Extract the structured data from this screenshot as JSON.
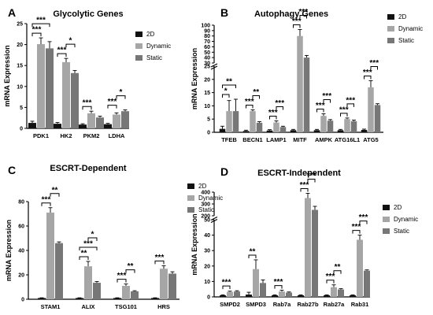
{
  "chart_data": [
    {
      "panel": "A",
      "type": "bar",
      "title": "Glycolytic Genes",
      "ylabel": "mRNA Expression",
      "ylim": [
        0,
        25
      ],
      "yticks": [
        "0",
        "5",
        "10",
        "15",
        "20",
        "25"
      ],
      "categories": [
        "PDK1",
        "HK2",
        "PKM2",
        "LDHA"
      ],
      "series": [
        {
          "name": "2D",
          "values": [
            1.3,
            1.1,
            0.9,
            1.0
          ],
          "errors": [
            0.4,
            0.3,
            0.2,
            0.2
          ]
        },
        {
          "name": "Dynamic",
          "values": [
            20.1,
            15.8,
            3.6,
            3.3
          ],
          "errors": [
            1.5,
            0.9,
            0.5,
            0.4
          ]
        },
        {
          "name": "Static",
          "values": [
            19.1,
            13.2,
            2.6,
            4.1
          ],
          "errors": [
            1.6,
            0.6,
            0.3,
            0.3
          ]
        }
      ],
      "significance": [
        {
          "category": "PDK1",
          "pair": "2D-Dynamic",
          "label": "***"
        },
        {
          "category": "PDK1",
          "pair": "2D-Static",
          "label": "***"
        },
        {
          "category": "HK2",
          "pair": "2D-Dynamic",
          "label": "***"
        },
        {
          "category": "HK2",
          "pair": "Dynamic-Static",
          "label": "*"
        },
        {
          "category": "PKM2",
          "pair": "2D-Dynamic",
          "label": "***"
        },
        {
          "category": "LDHA",
          "pair": "2D-Dynamic",
          "label": "***"
        },
        {
          "category": "LDHA",
          "pair": "Dynamic-Static",
          "label": "*"
        }
      ]
    },
    {
      "panel": "B",
      "type": "bar",
      "title": "Autophagy Genes",
      "ylabel": "mRNA Expression",
      "broken_axis": true,
      "ylim_lower": [
        0,
        25
      ],
      "ylim_upper": [
        30,
        100
      ],
      "yticks": [
        "0",
        "5",
        "10",
        "15",
        "20",
        "25",
        "30",
        "40",
        "50",
        "60",
        "70",
        "80",
        "90",
        "100"
      ],
      "categories": [
        "TFEB",
        "BECN1",
        "LAMP1",
        "MITF",
        "AMPK",
        "ATG16L1",
        "ATG5"
      ],
      "series": [
        {
          "name": "2D",
          "values": [
            1.3,
            0.5,
            0.7,
            0.8,
            0.8,
            0.8,
            0.9
          ],
          "errors": [
            1.0,
            0.3,
            0.3,
            0.3,
            0.3,
            0.3,
            0.3
          ]
        },
        {
          "name": "Dynamic",
          "values": [
            8.0,
            8.0,
            3.7,
            80,
            6.2,
            5.0,
            17.0
          ],
          "errors": [
            4.0,
            0.5,
            0.6,
            12,
            0.8,
            0.4,
            2.5
          ]
        },
        {
          "name": "Static",
          "values": [
            8.0,
            3.6,
            2.0,
            40,
            4.4,
            4.2,
            10.3
          ],
          "errors": [
            4.5,
            0.4,
            0.3,
            4,
            0.4,
            0.4,
            0.5
          ]
        }
      ],
      "significance": [
        {
          "category": "TFEB",
          "pair": "2D-Dynamic",
          "label": "*"
        },
        {
          "category": "TFEB",
          "pair": "2D-Static",
          "label": "**"
        },
        {
          "category": "BECN1",
          "pair": "2D-Dynamic",
          "label": "***"
        },
        {
          "category": "BECN1",
          "pair": "Dynamic-Static",
          "label": "**"
        },
        {
          "category": "LAMP1",
          "pair": "2D-Dynamic",
          "label": "***"
        },
        {
          "category": "LAMP1",
          "pair": "Dynamic-Static",
          "label": "***"
        },
        {
          "category": "MITF",
          "pair": "2D-Dynamic",
          "label": "***"
        },
        {
          "category": "MITF",
          "pair": "Dynamic-Static",
          "label": "***"
        },
        {
          "category": "AMPK",
          "pair": "2D-Dynamic",
          "label": "***"
        },
        {
          "category": "AMPK",
          "pair": "Dynamic-Static",
          "label": "***"
        },
        {
          "category": "ATG16L1",
          "pair": "2D-Dynamic",
          "label": "***"
        },
        {
          "category": "ATG16L1",
          "pair": "Dynamic-Static",
          "label": "***"
        },
        {
          "category": "ATG5",
          "pair": "2D-Dynamic",
          "label": "***"
        },
        {
          "category": "ATG5",
          "pair": "Dynamic-Static",
          "label": "***"
        }
      ]
    },
    {
      "panel": "C",
      "type": "bar",
      "title": "ESCRT-Dependent",
      "ylabel": "mRNA Expression",
      "ylim": [
        0,
        80
      ],
      "yticks": [
        "0",
        "20",
        "40",
        "60",
        "80"
      ],
      "categories": [
        "STAM1",
        "ALIX",
        "TSG101",
        "HRS"
      ],
      "series": [
        {
          "name": "2D",
          "values": [
            1.0,
            1.0,
            1.0,
            1.0
          ],
          "errors": [
            0.2,
            0.2,
            0.2,
            0.2
          ]
        },
        {
          "name": "Dynamic",
          "values": [
            71,
            27,
            11,
            25
          ],
          "errors": [
            4,
            4,
            1.5,
            2.5
          ]
        },
        {
          "name": "Static",
          "values": [
            46,
            13.5,
            6.5,
            21
          ],
          "errors": [
            1,
            1,
            0.5,
            1.5
          ]
        }
      ],
      "significance": [
        {
          "category": "STAM1",
          "pair": "2D-Dynamic",
          "label": "***"
        },
        {
          "category": "STAM1",
          "pair": "Dynamic-Static",
          "label": "**"
        },
        {
          "category": "ALIX",
          "pair": "2D-Dynamic",
          "label": "**"
        },
        {
          "category": "ALIX",
          "pair": "2D-Static",
          "label": "***"
        },
        {
          "category": "ALIX",
          "pair": "Dynamic-Static",
          "label": "*"
        },
        {
          "category": "TSG101",
          "pair": "2D-Dynamic",
          "label": "***"
        },
        {
          "category": "TSG101",
          "pair": "Dynamic-Static",
          "label": "**"
        },
        {
          "category": "HRS",
          "pair": "2D-Dynamic",
          "label": "***"
        }
      ]
    },
    {
      "panel": "D",
      "type": "bar",
      "title": "ESCRT-Independent",
      "ylabel": "mRNA Expression",
      "broken_axis": true,
      "ylim_lower": [
        0,
        50
      ],
      "ylim_upper": [
        200,
        400
      ],
      "yticks": [
        "0",
        "10",
        "20",
        "30",
        "40",
        "50",
        "200",
        "300",
        "400"
      ],
      "categories": [
        "SMPD2",
        "SMPD3",
        "Rab7a",
        "Rab27b",
        "Rab27a",
        "Rab31"
      ],
      "series": [
        {
          "name": "2D",
          "values": [
            1.0,
            1.5,
            1.0,
            1.0,
            1.0,
            1.0
          ],
          "errors": [
            0.3,
            1.5,
            0.3,
            0.3,
            0.3,
            0.3
          ]
        },
        {
          "name": "Dynamic",
          "values": [
            3.2,
            18.0,
            3.5,
            350,
            6.3,
            37.0
          ],
          "errors": [
            0.5,
            6.0,
            0.8,
            40,
            1.5,
            3.0
          ]
        },
        {
          "name": "Static",
          "values": [
            3.5,
            9.0,
            2.8,
            250,
            4.8,
            17.0
          ],
          "errors": [
            0.5,
            2.0,
            0.4,
            30,
            0.5,
            0.5
          ]
        }
      ],
      "significance": [
        {
          "category": "SMPD2",
          "pair": "2D-Dynamic",
          "label": "***"
        },
        {
          "category": "SMPD3",
          "pair": "2D-Dynamic",
          "label": "**"
        },
        {
          "category": "Rab7a",
          "pair": "2D-Dynamic",
          "label": "***"
        },
        {
          "category": "Rab27b",
          "pair": "2D-Dynamic",
          "label": "***"
        },
        {
          "category": "Rab27b",
          "pair": "Dynamic-Static",
          "label": "***"
        },
        {
          "category": "Rab27a",
          "pair": "2D-Dynamic",
          "label": "***"
        },
        {
          "category": "Rab27a",
          "pair": "Dynamic-Static",
          "label": "**"
        },
        {
          "category": "Rab31",
          "pair": "2D-Dynamic",
          "label": "***"
        },
        {
          "category": "Rab31",
          "pair": "Dynamic-Static",
          "label": "***"
        }
      ]
    }
  ],
  "colors": {
    "2D": "#111111",
    "Dynamic": "#a6a6a6",
    "Static": "#777777"
  }
}
